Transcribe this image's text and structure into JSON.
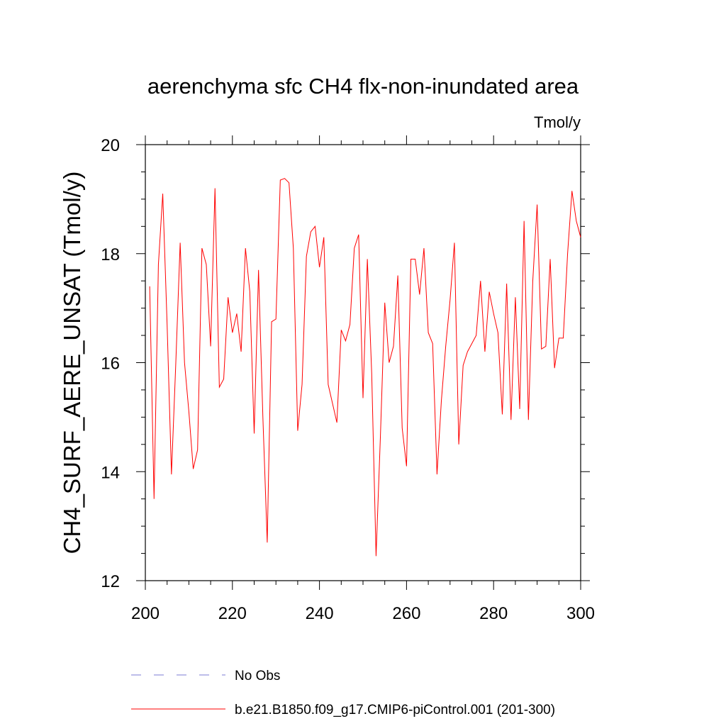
{
  "chart_data": {
    "type": "line",
    "title": "aerenchyma sfc CH4 flx-non-inundated area",
    "units": "Tmol/y",
    "xlabel": "",
    "ylabel": "CH4_SURF_AERE_UNSAT  (Tmol/y)",
    "xlim": [
      200,
      300
    ],
    "ylim": [
      12,
      20
    ],
    "xticks": [
      200,
      220,
      240,
      260,
      280,
      300
    ],
    "yticks": [
      12,
      14,
      16,
      18,
      20
    ],
    "legend": [
      {
        "label": "No Obs",
        "color": "#7b7bd6",
        "style": "dashed"
      },
      {
        "label": "b.e21.B1850.f09_g17.CMIP6-piControl.001 (201-300)",
        "color": "#ff0000",
        "style": "solid"
      }
    ],
    "series": [
      {
        "name": "b.e21.B1850.f09_g17.CMIP6-piControl.001 (201-300)",
        "color": "#ff0000",
        "x": [
          201,
          202,
          203,
          204,
          205,
          206,
          207,
          208,
          209,
          210,
          211,
          212,
          213,
          214,
          215,
          216,
          217,
          218,
          219,
          220,
          221,
          222,
          223,
          224,
          225,
          226,
          227,
          228,
          229,
          230,
          231,
          232,
          233,
          234,
          235,
          236,
          237,
          238,
          239,
          240,
          241,
          242,
          243,
          244,
          245,
          246,
          247,
          248,
          249,
          250,
          251,
          252,
          253,
          254,
          255,
          256,
          257,
          258,
          259,
          260,
          261,
          262,
          263,
          264,
          265,
          266,
          267,
          268,
          269,
          270,
          271,
          272,
          273,
          274,
          275,
          276,
          277,
          278,
          279,
          280,
          281,
          282,
          283,
          284,
          285,
          286,
          287,
          288,
          289,
          290,
          291,
          292,
          293,
          294,
          295,
          296,
          297,
          298,
          299,
          300
        ],
        "values": [
          17.4,
          13.5,
          17.8,
          19.1,
          16.7,
          13.95,
          16.0,
          18.2,
          16.0,
          15.1,
          14.05,
          14.4,
          18.1,
          17.8,
          16.3,
          19.2,
          15.55,
          15.7,
          17.2,
          16.55,
          16.9,
          16.2,
          18.1,
          17.3,
          14.7,
          17.7,
          15.0,
          12.7,
          16.75,
          16.8,
          19.35,
          19.38,
          19.3,
          18.1,
          14.75,
          15.6,
          17.95,
          18.4,
          18.5,
          17.75,
          18.3,
          15.6,
          15.25,
          14.9,
          16.6,
          16.4,
          16.7,
          18.1,
          18.35,
          15.35,
          17.9,
          15.8,
          12.45,
          14.65,
          17.1,
          16.0,
          16.3,
          17.6,
          14.8,
          14.1,
          17.9,
          17.9,
          17.25,
          18.1,
          16.55,
          16.35,
          13.95,
          15.3,
          16.3,
          17.15,
          18.2,
          14.5,
          15.95,
          16.2,
          16.35,
          16.5,
          17.5,
          16.2,
          17.3,
          16.9,
          16.55,
          15.05,
          17.45,
          14.95,
          17.2,
          15.15,
          18.6,
          14.95,
          17.5,
          18.9,
          16.25,
          16.3,
          17.9,
          15.9,
          16.45,
          16.45,
          18.0,
          19.15,
          18.6,
          18.3
        ]
      }
    ]
  }
}
